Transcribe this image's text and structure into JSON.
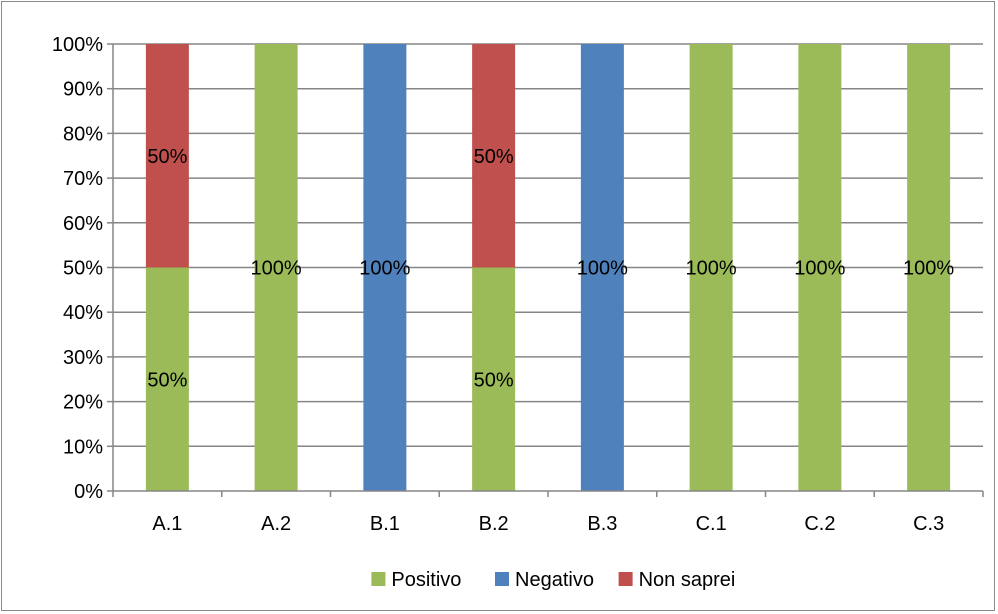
{
  "colors": {
    "Positivo": "#9bbb59",
    "Negativo": "#4f81bd",
    "Non saprei": "#c0504d"
  },
  "chart_data": {
    "type": "bar",
    "stacked": true,
    "normalized": true,
    "categories": [
      "A.1",
      "A.2",
      "B.1",
      "B.2",
      "B.3",
      "C.1",
      "C.2",
      "C.3"
    ],
    "series": [
      {
        "name": "Positivo",
        "values": [
          50,
          100,
          0,
          50,
          0,
          100,
          100,
          100
        ]
      },
      {
        "name": "Negativo",
        "values": [
          0,
          0,
          100,
          0,
          100,
          0,
          0,
          0
        ]
      },
      {
        "name": "Non saprei",
        "values": [
          50,
          0,
          0,
          50,
          0,
          0,
          0,
          0
        ]
      }
    ],
    "data_labels": [
      {
        "category": "A.1",
        "series": "Positivo",
        "text": "50%"
      },
      {
        "category": "A.1",
        "series": "Non saprei",
        "text": "50%"
      },
      {
        "category": "A.2",
        "series": "Positivo",
        "text": "100%"
      },
      {
        "category": "B.1",
        "series": "Negativo",
        "text": "100%"
      },
      {
        "category": "B.2",
        "series": "Positivo",
        "text": "50%"
      },
      {
        "category": "B.2",
        "series": "Non saprei",
        "text": "50%"
      },
      {
        "category": "B.3",
        "series": "Negativo",
        "text": "100%"
      },
      {
        "category": "C.1",
        "series": "Positivo",
        "text": "100%"
      },
      {
        "category": "C.2",
        "series": "Positivo",
        "text": "100%"
      },
      {
        "category": "C.3",
        "series": "Positivo",
        "text": "100%"
      }
    ],
    "yticks": [
      "0%",
      "10%",
      "20%",
      "30%",
      "40%",
      "50%",
      "60%",
      "70%",
      "80%",
      "90%",
      "100%"
    ],
    "ylim": [
      0,
      100
    ],
    "title": "",
    "xlabel": "",
    "ylabel": "",
    "grid": true,
    "legend": {
      "position": "bottom",
      "entries": [
        "Positivo",
        "Negativo",
        "Non saprei"
      ]
    }
  }
}
